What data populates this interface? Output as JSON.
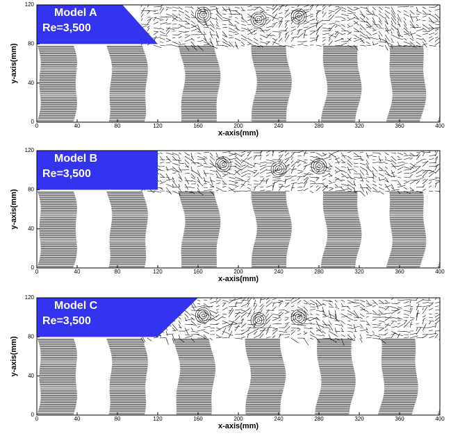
{
  "panels": [
    {
      "title": "Model A",
      "re": "Re=3,500",
      "xlabel": "x-axis(mm)",
      "ylabel": "y-axis(mm)",
      "xlim": [
        0,
        400
      ],
      "ylim": [
        0,
        120
      ],
      "xticks": [
        0,
        40,
        80,
        120,
        160,
        200,
        240,
        280,
        320,
        360,
        400
      ],
      "yticks": [
        0,
        40,
        80,
        120
      ]
    },
    {
      "title": "Model B",
      "re": "Re=3,500",
      "xlabel": "x-axis(mm)",
      "ylabel": "y-axis(mm)",
      "xlim": [
        0,
        400
      ],
      "ylim": [
        0,
        120
      ],
      "xticks": [
        0,
        40,
        80,
        120,
        160,
        200,
        240,
        280,
        320,
        360,
        400
      ],
      "yticks": [
        0,
        40,
        80,
        120
      ]
    },
    {
      "title": "Model C",
      "re": "Re=3,500",
      "xlabel": "x-axis(mm)",
      "ylabel": "y-axis(mm)",
      "xlim": [
        0,
        400
      ],
      "ylim": [
        0,
        120
      ],
      "xticks": [
        0,
        40,
        80,
        120,
        160,
        200,
        240,
        280,
        320,
        360,
        400
      ],
      "yticks": [
        0,
        40,
        80,
        120
      ]
    }
  ]
}
